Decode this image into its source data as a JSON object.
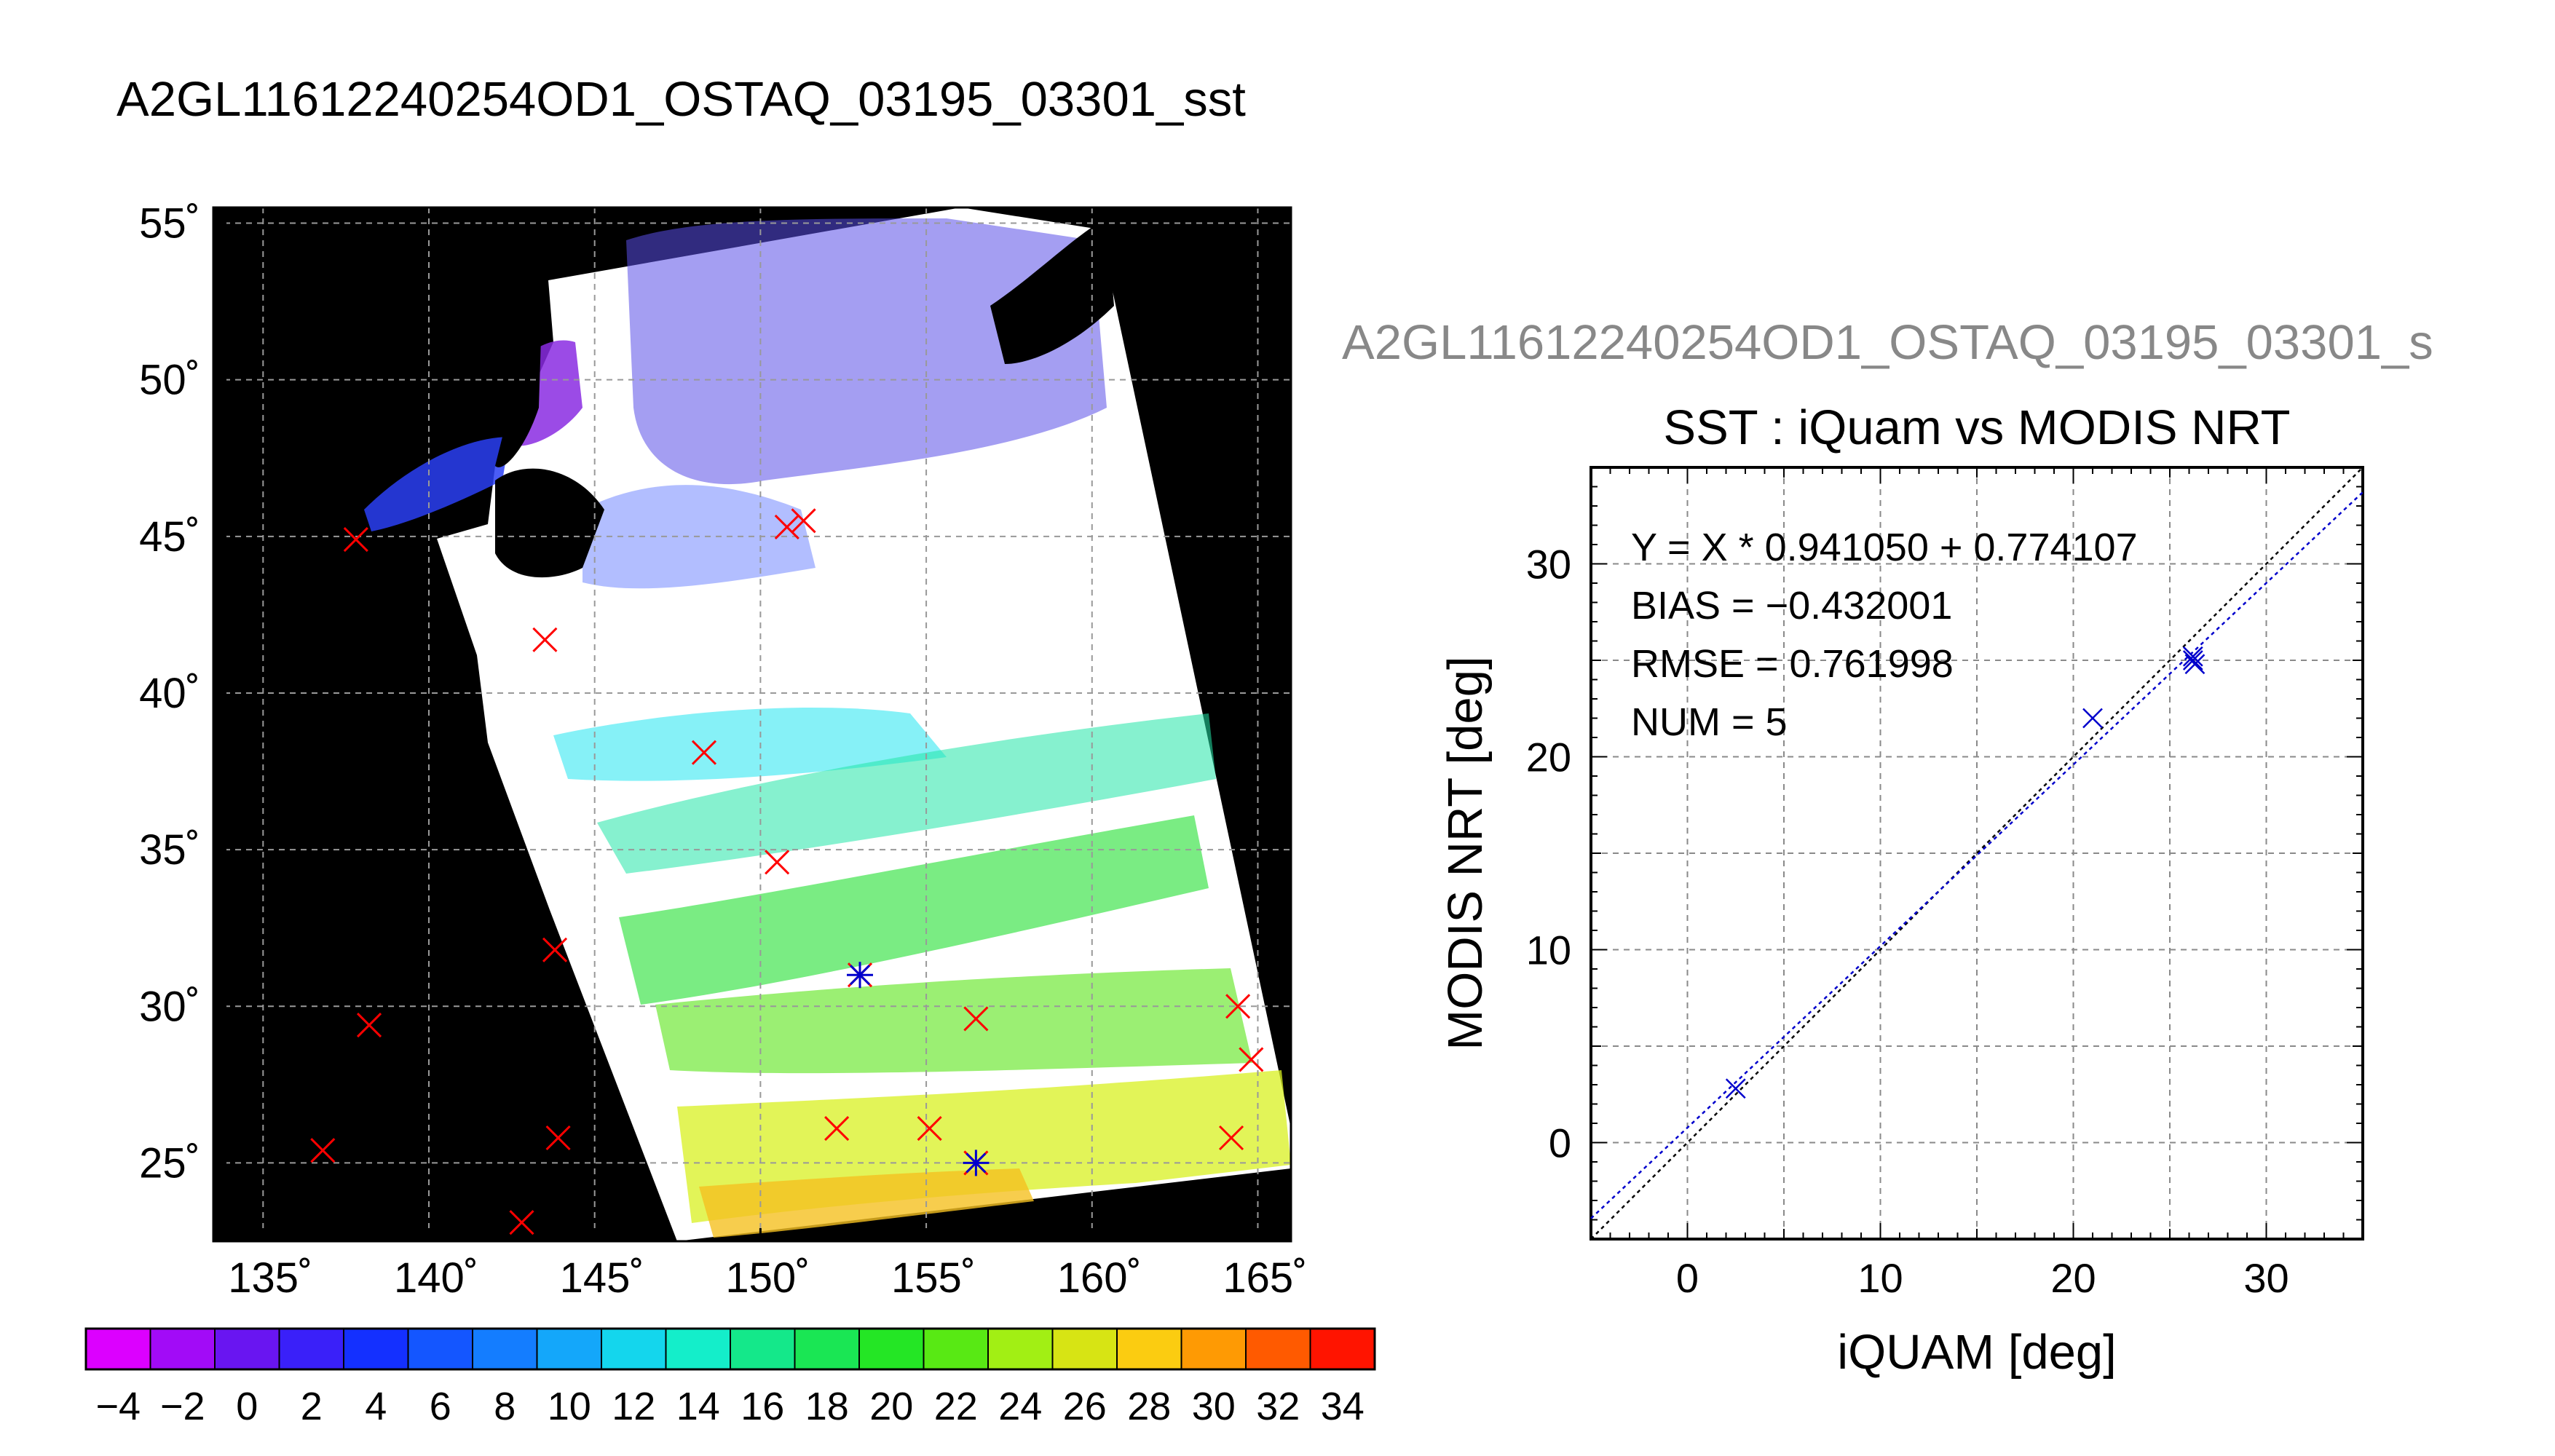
{
  "main_title": "A2GL11612240254OD1_OSTAQ_03195_03301_sst",
  "right_title": "A2GL11612240254OD1_OSTAQ_03195_03301_s",
  "colors": {
    "background": "#ffffff",
    "map_land": "#000000",
    "marker_red": "#ff0000",
    "marker_blue": "#0000cc",
    "title_gray": "#888888"
  },
  "chart_data": [
    {
      "type": "heatmap",
      "description": "SST map",
      "xlim": [
        133.5,
        166
      ],
      "ylim": [
        22.5,
        55.5
      ],
      "x_ticks": [
        135,
        140,
        145,
        150,
        155,
        160,
        165
      ],
      "x_tick_labels": [
        "135˚",
        "140˚",
        "145˚",
        "150˚",
        "155˚",
        "160˚",
        "165˚"
      ],
      "y_ticks": [
        25,
        30,
        35,
        40,
        45,
        50,
        55
      ],
      "y_tick_labels": [
        "25˚",
        "30˚",
        "35˚",
        "40˚",
        "45˚",
        "50˚",
        "55˚"
      ],
      "grid": true,
      "colorbar": {
        "range": [
          -5,
          35
        ],
        "step": 2,
        "tick_labels": [
          "−4",
          "−2",
          "0",
          "2",
          "4",
          "6",
          "8",
          "10",
          "12",
          "14",
          "16",
          "18",
          "20",
          "22",
          "24",
          "26",
          "28",
          "30",
          "32",
          "34"
        ],
        "tick_values": [
          -4,
          -2,
          0,
          2,
          4,
          6,
          8,
          10,
          12,
          14,
          16,
          18,
          20,
          22,
          24,
          26,
          28,
          30,
          32,
          34
        ]
      },
      "markers_red_x": [
        [
          137.8,
          44.9
        ],
        [
          143.5,
          41.7
        ],
        [
          148.3,
          38.1
        ],
        [
          150.5,
          34.6
        ],
        [
          143.8,
          31.8
        ],
        [
          138.2,
          29.4
        ],
        [
          136.8,
          25.4
        ],
        [
          143.9,
          25.8
        ],
        [
          142.8,
          23.1
        ],
        [
          150.8,
          45.3
        ],
        [
          151.3,
          45.5
        ],
        [
          152.3,
          26.1
        ],
        [
          155.1,
          26.1
        ],
        [
          156.5,
          29.6
        ],
        [
          164.4,
          30.0
        ],
        [
          164.8,
          28.3
        ],
        [
          164.2,
          25.8
        ]
      ],
      "markers_match": [
        [
          153.0,
          31.0
        ],
        [
          156.5,
          25.0
        ]
      ]
    },
    {
      "type": "scatter",
      "title": "SST : iQuam vs MODIS NRT",
      "xlabel": "iQUAM [deg]",
      "ylabel": "MODIS NRT [deg]",
      "xlim": [
        -5,
        35
      ],
      "ylim": [
        -5,
        35
      ],
      "x_ticks": [
        0,
        10,
        20,
        30
      ],
      "y_ticks": [
        0,
        10,
        20,
        30
      ],
      "x_tick_labels": [
        "0",
        "10",
        "20",
        "30"
      ],
      "y_tick_labels": [
        "0",
        "10",
        "20",
        "30"
      ],
      "grid": true,
      "points": [
        {
          "x": 2.5,
          "y": 2.8
        },
        {
          "x": 21.0,
          "y": 22.0
        },
        {
          "x": 26.2,
          "y": 25.0
        },
        {
          "x": 26.2,
          "y": 25.2
        },
        {
          "x": 26.3,
          "y": 24.8
        }
      ],
      "fit": {
        "slope": 0.94105,
        "intercept": 0.774107
      },
      "annotations": [
        "Y = X * 0.941050 + 0.774107",
        "BIAS = −0.432001",
        "RMSE = 0.761998",
        "NUM = 5"
      ]
    }
  ]
}
